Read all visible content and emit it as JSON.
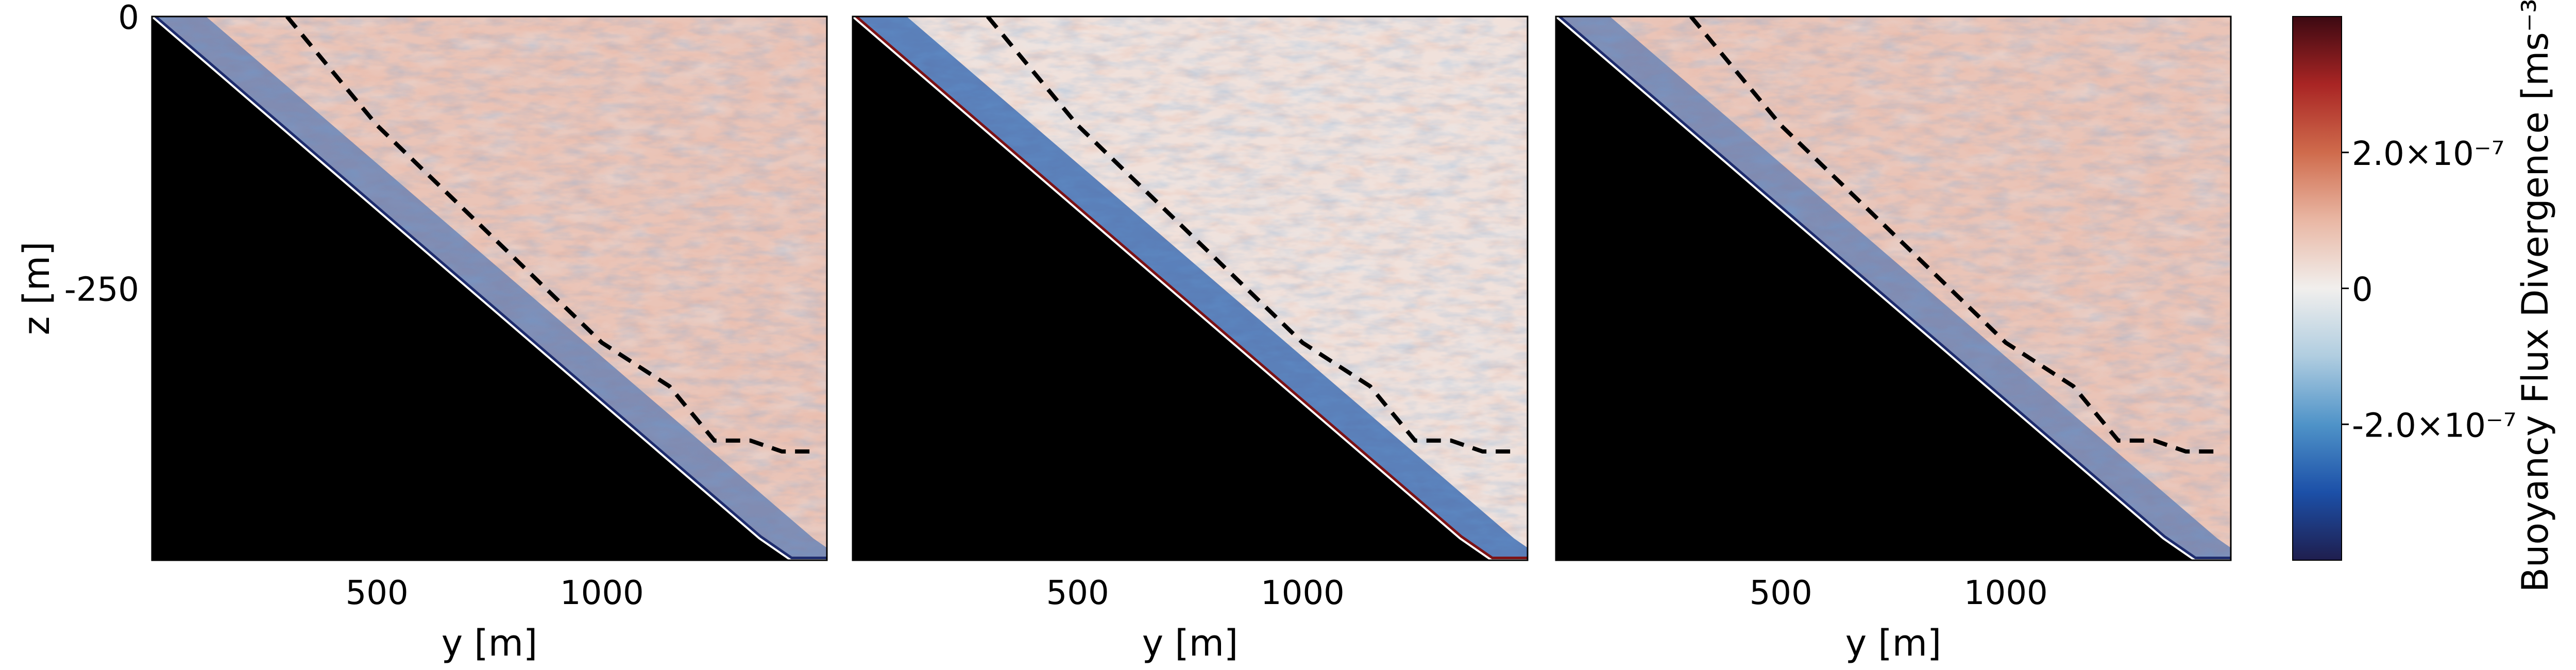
{
  "chart_data": {
    "type": "heatmap",
    "colormap": "balance (blue-white-red)",
    "panels": [
      {
        "id": "panel-1",
        "xlabel": "y [m]",
        "ylabel": "z [m]",
        "xlim": [
          0,
          1500
        ],
        "ylim": [
          -500,
          0
        ],
        "xticks": [
          500,
          1000
        ],
        "xtick_labels": [
          "500",
          "1000"
        ],
        "yticks": [
          0,
          -250
        ],
        "ytick_labels": [
          "0",
          "-250"
        ],
        "dashed_line_label": "",
        "near_wall_sign": "negative",
        "interior_sign": "positive"
      },
      {
        "id": "panel-2",
        "xlabel": "y [m]",
        "xlim": [
          0,
          1500
        ],
        "ylim": [
          -500,
          0
        ],
        "xticks": [
          500,
          1000
        ],
        "xtick_labels": [
          "500",
          "1000"
        ],
        "near_wall_sign": "negative",
        "interior_sign": "mixed"
      },
      {
        "id": "panel-3",
        "xlabel": "y [m]",
        "xlim": [
          0,
          1500
        ],
        "ylim": [
          -500,
          0
        ],
        "xticks": [
          500,
          1000
        ],
        "xtick_labels": [
          "500",
          "1000"
        ],
        "near_wall_sign": "negative",
        "interior_sign": "positive"
      }
    ],
    "dashed_line": {
      "y": [
        300,
        500,
        750,
        1000,
        1150,
        1250,
        1330,
        1400,
        1470
      ],
      "z": [
        0,
        -100,
        -200,
        -300,
        -340,
        -390,
        -390,
        -400,
        -400
      ]
    },
    "slope_boundary": {
      "y": [
        0,
        1350,
        1420,
        1500
      ],
      "z": [
        0,
        -480,
        -500,
        -500
      ]
    },
    "colorbar": {
      "label": "Buoyancy Flux Divergence [ms⁻³]",
      "range": [
        -4e-07,
        4e-07
      ],
      "ticks": [
        2e-07,
        0,
        -2e-07
      ],
      "tick_labels": [
        "2.0×10⁻⁷",
        "0",
        "-2.0×10⁻⁷"
      ],
      "colors": [
        "#1f1e4e",
        "#1c50a8",
        "#4f93c8",
        "#b0cde0",
        "#f1efed",
        "#e9b7a4",
        "#cf6b4c",
        "#a92524",
        "#3c0912"
      ]
    }
  }
}
